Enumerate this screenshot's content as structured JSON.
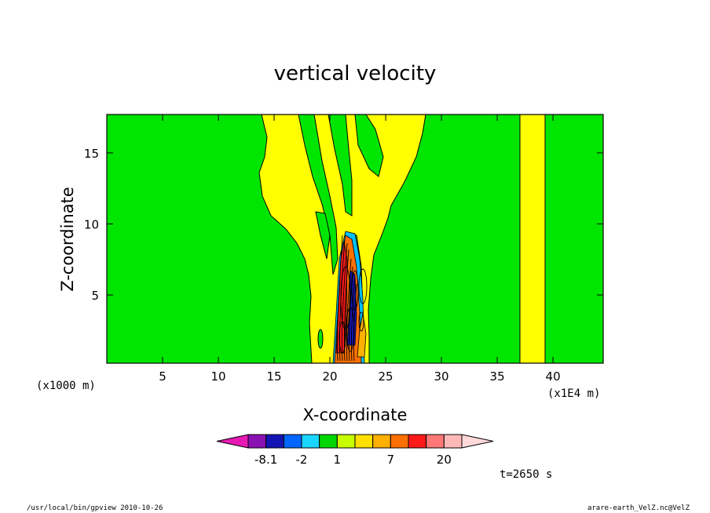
{
  "chart_data": {
    "type": "heatmap",
    "title": "vertical velocity",
    "xlabel": "X-coordinate",
    "ylabel": "Z-coordinate",
    "x_unit": "(x1000 m)",
    "x_factor_label": "(x1E4 m)",
    "xlim": [
      0,
      44.5
    ],
    "ylim": [
      0.2,
      17.7
    ],
    "x_ticks": [
      5,
      10,
      15,
      20,
      25,
      30,
      35,
      40
    ],
    "y_ticks": [
      5,
      10,
      15
    ],
    "grid": false,
    "colorbar": {
      "placement": "bottom",
      "colors": [
        "#e61ab3",
        "#8a12b3",
        "#1414b4",
        "#0066ff",
        "#1ad6ff",
        "#00d600",
        "#c8ff00",
        "#ffe000",
        "#ffb000",
        "#ff7000",
        "#ff1a1a",
        "#ff7878",
        "#ffb8b8",
        "#ffd8d8"
      ],
      "labels": [
        "-8.1",
        "-2",
        "1",
        "7",
        "20"
      ],
      "label_positions": [
        1,
        3,
        5,
        8,
        11
      ]
    },
    "background_level_color": "#00e600",
    "positive_level_color": "#ffff00",
    "features": [
      {
        "kind": "plume",
        "x_range": [
          13.5,
          29
        ],
        "z_range": [
          0.2,
          17.7
        ],
        "color": "#ffff00"
      },
      {
        "kind": "band",
        "x_range": [
          37.4,
          39.7
        ],
        "z_range": [
          0.2,
          17.7
        ],
        "color": "#ffff00"
      },
      {
        "kind": "core",
        "x_range": [
          20.0,
          23.5
        ],
        "z_range": [
          0.2,
          10.0
        ],
        "color": "#ff1a1a"
      }
    ],
    "time_label": "t=2650 s"
  },
  "footer": {
    "left": "/usr/local/bin/gpview  2010-10-26",
    "right": "arare-earth_VelZ.nc@VelZ"
  }
}
